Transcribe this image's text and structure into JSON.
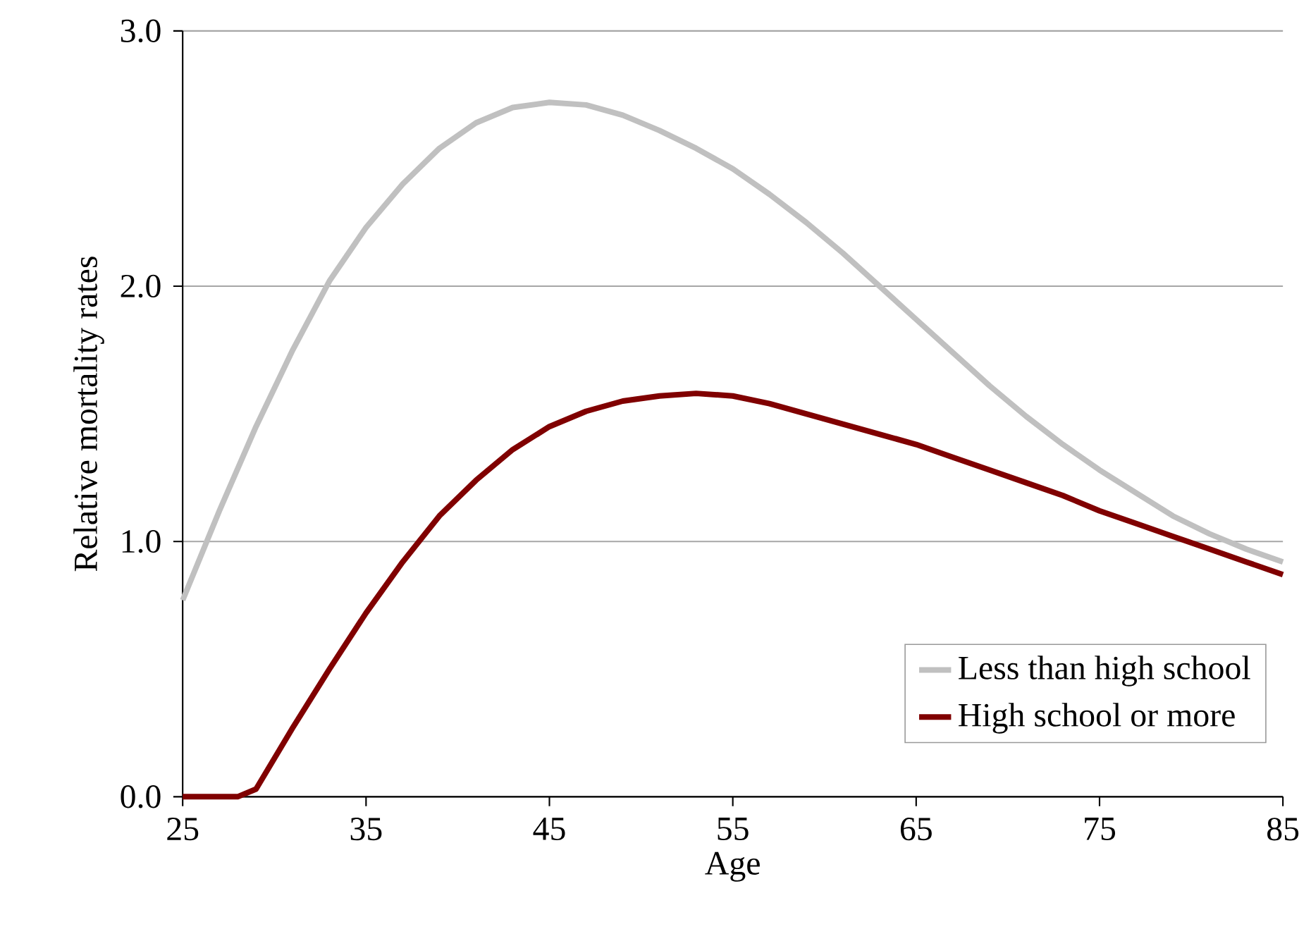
{
  "chart_data": {
    "type": "line",
    "xlabel": "Age",
    "ylabel": "Relative mortality rates",
    "xlim": [
      25,
      85
    ],
    "ylim": [
      0,
      3
    ],
    "xticks": [
      25,
      35,
      45,
      55,
      65,
      75,
      85
    ],
    "yticks": [
      {
        "value": 0,
        "label": "0.0"
      },
      {
        "value": 1,
        "label": "1.0"
      },
      {
        "value": 2,
        "label": "2.0"
      },
      {
        "value": 3,
        "label": "3.0"
      }
    ],
    "grid": "y",
    "legend": "bottom right",
    "marker": "none",
    "line_style": "solid",
    "series": [
      {
        "name": "Less than high school",
        "color": "#c0c0c0",
        "x": [
          25,
          27,
          29,
          31,
          33,
          35,
          37,
          39,
          41,
          43,
          45,
          47,
          49,
          51,
          53,
          55,
          57,
          59,
          61,
          63,
          65,
          67,
          69,
          71,
          73,
          75,
          77,
          79,
          81,
          83,
          85
        ],
        "values": [
          0.77,
          1.12,
          1.45,
          1.75,
          2.02,
          2.23,
          2.4,
          2.54,
          2.64,
          2.7,
          2.72,
          2.71,
          2.67,
          2.61,
          2.54,
          2.46,
          2.36,
          2.25,
          2.13,
          2.0,
          1.87,
          1.74,
          1.61,
          1.49,
          1.38,
          1.28,
          1.19,
          1.1,
          1.03,
          0.97,
          0.92
        ]
      },
      {
        "name": "High school or more",
        "color": "#800000",
        "x": [
          25,
          26,
          27,
          28,
          29,
          31,
          33,
          35,
          37,
          39,
          41,
          43,
          45,
          47,
          49,
          51,
          53,
          55,
          57,
          59,
          61,
          63,
          65,
          67,
          69,
          71,
          73,
          75,
          77,
          79,
          81,
          83,
          85
        ],
        "values": [
          0,
          0,
          0,
          0,
          0.03,
          0.27,
          0.5,
          0.72,
          0.92,
          1.1,
          1.24,
          1.36,
          1.45,
          1.51,
          1.55,
          1.57,
          1.58,
          1.57,
          1.54,
          1.5,
          1.46,
          1.42,
          1.38,
          1.33,
          1.28,
          1.23,
          1.18,
          1.12,
          1.07,
          1.02,
          0.97,
          0.92,
          0.87
        ]
      }
    ]
  }
}
